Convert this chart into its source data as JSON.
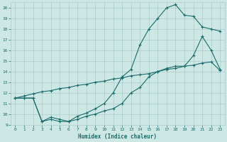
{
  "xlabel": "Humidex (Indice chaleur)",
  "xlim": [
    -0.5,
    23.5
  ],
  "ylim": [
    9,
    20.5
  ],
  "yticks": [
    9,
    10,
    11,
    12,
    13,
    14,
    15,
    16,
    17,
    18,
    19,
    20
  ],
  "xticks": [
    0,
    1,
    2,
    3,
    4,
    5,
    6,
    7,
    8,
    9,
    10,
    11,
    12,
    13,
    14,
    15,
    16,
    17,
    18,
    19,
    20,
    21,
    22,
    23
  ],
  "bg_color": "#cde8e4",
  "grid_color": "#a8cccc",
  "line_color": "#1a6b6b",
  "curve1_x": [
    0,
    1,
    2,
    3,
    4,
    5,
    6,
    7,
    8,
    9,
    10,
    11,
    12,
    13,
    14,
    15,
    16,
    17,
    18,
    19,
    20,
    21,
    22,
    23
  ],
  "curve1_y": [
    11.5,
    11.5,
    11.5,
    9.3,
    9.7,
    9.5,
    9.3,
    9.8,
    10.1,
    10.5,
    11.0,
    12.0,
    13.5,
    14.2,
    16.5,
    18.0,
    19.0,
    20.0,
    20.3,
    19.3,
    19.2,
    18.2,
    18.0,
    17.8
  ],
  "curve2_x": [
    0,
    1,
    2,
    3,
    4,
    5,
    6,
    7,
    8,
    9,
    10,
    11,
    12,
    13,
    14,
    15,
    16,
    17,
    18,
    19,
    20,
    21,
    22,
    23
  ],
  "curve2_y": [
    11.5,
    11.5,
    11.5,
    9.3,
    9.5,
    9.3,
    9.3,
    9.5,
    9.8,
    10.0,
    10.3,
    10.5,
    11.0,
    12.0,
    12.5,
    13.5,
    14.0,
    14.3,
    14.5,
    14.5,
    15.5,
    17.3,
    16.0,
    14.2
  ],
  "curve3_x": [
    0,
    1,
    2,
    3,
    4,
    5,
    6,
    7,
    8,
    9,
    10,
    11,
    12,
    13,
    14,
    15,
    16,
    17,
    18,
    19,
    20,
    21,
    22,
    23
  ],
  "curve3_y": [
    11.5,
    11.7,
    11.9,
    12.1,
    12.2,
    12.4,
    12.5,
    12.7,
    12.8,
    13.0,
    13.1,
    13.3,
    13.4,
    13.6,
    13.7,
    13.8,
    14.0,
    14.2,
    14.3,
    14.5,
    14.6,
    14.8,
    14.9,
    14.1
  ],
  "marker": "+",
  "markersize": 3,
  "linewidth": 0.8
}
